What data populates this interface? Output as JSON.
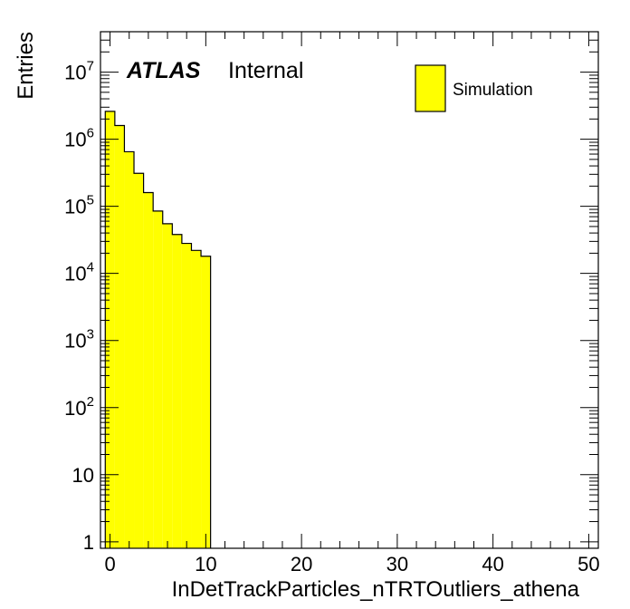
{
  "chart_data": {
    "type": "bar",
    "subtype": "histogram",
    "xlabel": "InDetTrackParticles_nTRTOutliers_athena",
    "ylabel": "Entries",
    "xlim": [
      -1,
      51
    ],
    "ylim": [
      0.8,
      40000000
    ],
    "yscale": "log",
    "x_ticks": [
      0,
      10,
      20,
      30,
      40,
      50
    ],
    "y_tick_labels": [
      {
        "value": 1,
        "base": "1",
        "exp": ""
      },
      {
        "value": 10,
        "base": "10",
        "exp": ""
      },
      {
        "value": 100,
        "base": "10",
        "exp": "2"
      },
      {
        "value": 1000,
        "base": "10",
        "exp": "3"
      },
      {
        "value": 10000,
        "base": "10",
        "exp": "4"
      },
      {
        "value": 100000,
        "base": "10",
        "exp": "5"
      },
      {
        "value": 1000000,
        "base": "10",
        "exp": "6"
      },
      {
        "value": 10000000,
        "base": "10",
        "exp": "7"
      }
    ],
    "bin_width": 1,
    "bin_centers": [
      0,
      1,
      2,
      3,
      4,
      5,
      6,
      7,
      8,
      9,
      10
    ],
    "series": [
      {
        "name": "Simulation",
        "color": "#ffff00",
        "values": [
          2600000,
          1600000,
          650000,
          310000,
          160000,
          85000,
          55000,
          38000,
          28000,
          22000,
          18000
        ]
      }
    ],
    "legend": {
      "position": "top-right",
      "entries": [
        "Simulation"
      ]
    },
    "grid": false,
    "annotations": {
      "atlas": "ATLAS",
      "label": "Internal"
    }
  }
}
